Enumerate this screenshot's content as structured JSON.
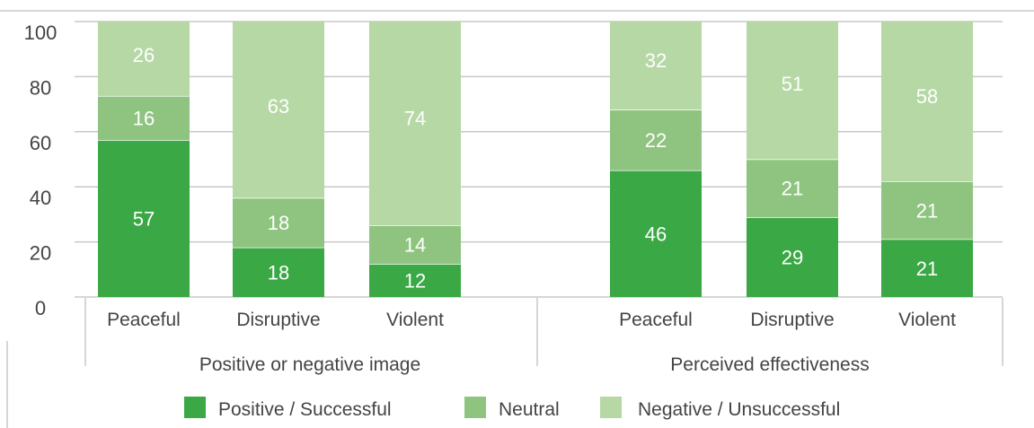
{
  "chart_data": {
    "type": "bar",
    "stacked": true,
    "ylim": [
      0,
      100
    ],
    "yticks": [
      0,
      20,
      40,
      60,
      80,
      100
    ],
    "grid": true,
    "legend_position": "bottom",
    "groups": [
      {
        "label": "Positive or negative image",
        "categories": [
          "Peaceful",
          "Disruptive",
          "Violent"
        ]
      },
      {
        "label": "Perceived effectiveness",
        "categories": [
          "Peaceful",
          "Disruptive",
          "Violent"
        ]
      }
    ],
    "categories": [
      "Peaceful",
      "Disruptive",
      "Violent",
      "Peaceful",
      "Disruptive",
      "Violent"
    ],
    "series": [
      {
        "name": "Positive / Successful",
        "color": "#3aa845",
        "values": [
          57,
          18,
          12,
          46,
          29,
          21
        ]
      },
      {
        "name": "Neutral",
        "color": "#8ec47f",
        "values": [
          16,
          18,
          14,
          22,
          21,
          21
        ]
      },
      {
        "name": "Negative / Unsuccessful",
        "color": "#b5d8a5",
        "values": [
          26,
          63,
          74,
          32,
          51,
          58
        ]
      }
    ]
  },
  "colors": {
    "grid": "#c8c8c8",
    "text": "#444444",
    "bar_label": "#ffffff"
  }
}
